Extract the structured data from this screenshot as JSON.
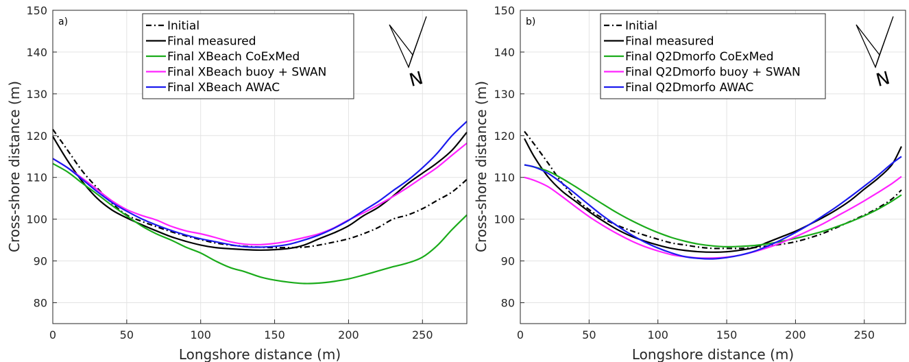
{
  "colors": {
    "initial": "#000000",
    "measured": "#000000",
    "coexmed": "#1aab1a",
    "buoy_swan": "#ff22ff",
    "awac": "#1a1aee",
    "grid": "#e3e3e3",
    "axis": "#262626"
  },
  "north_arrow": {
    "label": "N",
    "icon": "north-arrow-icon"
  },
  "chart_data": [
    {
      "type": "line",
      "panel_label": "a)",
      "xlabel": "Longshore distance (m)",
      "ylabel": "Cross-shore distance (m)",
      "xlim": [
        0,
        280
      ],
      "ylim": [
        75,
        150
      ],
      "xticks": [
        0,
        50,
        100,
        150,
        200,
        250
      ],
      "yticks": [
        80,
        90,
        100,
        110,
        120,
        130,
        140,
        150
      ],
      "grid": true,
      "legend_position": "top-center",
      "series": [
        {
          "name": "Initial",
          "style": "dashdot",
          "color_key": "initial",
          "x": [
            0,
            10,
            20,
            30,
            40,
            50,
            60,
            70,
            80,
            90,
            100,
            110,
            120,
            130,
            140,
            150,
            160,
            170,
            180,
            190,
            200,
            210,
            220,
            230,
            240,
            250,
            260,
            270,
            280
          ],
          "y": [
            121.5,
            116.5,
            111.5,
            107.5,
            103.8,
            101,
            99.5,
            98.2,
            97,
            96,
            95.1,
            94.3,
            93.8,
            93.5,
            93.3,
            93.2,
            93.2,
            93.3,
            93.8,
            94.5,
            95.3,
            96.5,
            98,
            100,
            101,
            102.5,
            104.5,
            106.5,
            109.5
          ]
        },
        {
          "name": "Final measured",
          "style": "solid",
          "color_key": "measured",
          "x": [
            0,
            10,
            20,
            30,
            40,
            50,
            60,
            70,
            80,
            90,
            100,
            110,
            120,
            130,
            140,
            150,
            160,
            170,
            180,
            190,
            200,
            210,
            220,
            230,
            240,
            250,
            260,
            270,
            280
          ],
          "y": [
            119.8,
            114,
            109,
            105,
            102.2,
            100.3,
            98.7,
            97.2,
            95.8,
            94.7,
            93.8,
            93.2,
            92.9,
            92.7,
            92.6,
            92.7,
            93,
            93.8,
            95.3,
            96.7,
            98.4,
            100.8,
            102.8,
            105.5,
            108.5,
            111,
            113.5,
            116.5,
            120.8
          ]
        },
        {
          "name": "Final XBeach CoExMed",
          "style": "solid",
          "color_key": "coexmed",
          "x": [
            0,
            10,
            20,
            30,
            40,
            50,
            60,
            70,
            80,
            90,
            100,
            110,
            120,
            130,
            140,
            150,
            160,
            170,
            180,
            190,
            200,
            210,
            220,
            230,
            240,
            250,
            260,
            270,
            280
          ],
          "y": [
            113.3,
            111.3,
            108.6,
            106,
            103.3,
            100.8,
            98.4,
            96.5,
            95,
            93.3,
            91.9,
            90,
            88.4,
            87.4,
            86.2,
            85.4,
            84.9,
            84.6,
            84.7,
            85.1,
            85.7,
            86.6,
            87.6,
            88.6,
            89.5,
            90.9,
            93.7,
            97.5,
            101
          ]
        },
        {
          "name": "Final XBeach buoy + SWAN",
          "style": "solid",
          "color_key": "buoy_swan",
          "x": [
            0,
            10,
            20,
            30,
            40,
            50,
            60,
            70,
            80,
            90,
            100,
            110,
            120,
            130,
            140,
            150,
            160,
            170,
            180,
            190,
            200,
            210,
            220,
            230,
            240,
            250,
            260,
            270,
            280
          ],
          "y": [
            114.5,
            112.3,
            109.8,
            107.1,
            104.4,
            102.3,
            100.9,
            99.8,
            98.3,
            97.2,
            96.5,
            95.6,
            94.6,
            94,
            93.9,
            94.2,
            94.8,
            95.6,
            96.5,
            97.9,
            99.8,
            101.5,
            103.4,
            105.4,
            107.6,
            110,
            112.4,
            115.3,
            118.2
          ]
        },
        {
          "name": "Final XBeach AWAC",
          "style": "solid",
          "color_key": "awac",
          "x": [
            0,
            10,
            20,
            30,
            40,
            50,
            60,
            70,
            80,
            90,
            100,
            110,
            120,
            130,
            140,
            150,
            160,
            170,
            180,
            190,
            200,
            210,
            220,
            230,
            240,
            250,
            260,
            270,
            280
          ],
          "y": [
            114.5,
            112.3,
            109.5,
            106.6,
            104,
            101.9,
            100.1,
            98.6,
            97.3,
            96.2,
            95.3,
            94.6,
            93.9,
            93.4,
            93.3,
            93.5,
            94,
            95,
            96.2,
            97.8,
            99.7,
            102,
            104.2,
            106.8,
            109.3,
            112.3,
            115.8,
            120,
            123.4
          ]
        }
      ]
    },
    {
      "type": "line",
      "panel_label": "b)",
      "xlabel": "Longshore distance (m)",
      "ylabel": "Cross-shore distance (m)",
      "xlim": [
        0,
        280
      ],
      "ylim": [
        75,
        150
      ],
      "xticks": [
        0,
        50,
        100,
        150,
        200,
        250
      ],
      "yticks": [
        80,
        90,
        100,
        110,
        120,
        130,
        140,
        150
      ],
      "grid": true,
      "legend_position": "top-center",
      "series": [
        {
          "name": "Initial",
          "style": "dashdot",
          "color_key": "initial",
          "x": [
            3,
            10,
            20,
            30,
            40,
            50,
            60,
            70,
            80,
            90,
            100,
            110,
            120,
            130,
            140,
            150,
            160,
            170,
            180,
            190,
            200,
            210,
            220,
            230,
            240,
            250,
            260,
            270,
            277
          ],
          "y": [
            121,
            118,
            113.5,
            108.8,
            105,
            102.3,
            100.2,
            98.6,
            97.3,
            96.2,
            95.2,
            94.3,
            93.8,
            93.3,
            93,
            93,
            93,
            93.2,
            93.6,
            94,
            94.6,
            95.5,
            96.6,
            98,
            99.5,
            101,
            102.7,
            104.8,
            107
          ]
        },
        {
          "name": "Final measured",
          "style": "solid",
          "color_key": "measured",
          "x": [
            3,
            10,
            20,
            30,
            40,
            50,
            60,
            70,
            80,
            90,
            100,
            110,
            120,
            130,
            140,
            150,
            160,
            170,
            180,
            190,
            200,
            210,
            220,
            230,
            240,
            250,
            260,
            270,
            277
          ],
          "y": [
            119.3,
            115,
            110.2,
            106.8,
            104.3,
            101.8,
            99.6,
            97.6,
            96,
            94.8,
            93.8,
            93,
            92.5,
            92.2,
            92.1,
            92.2,
            92.6,
            93.2,
            94.5,
            95.8,
            97.1,
            98.7,
            100.4,
            102.3,
            104.5,
            107.2,
            109.8,
            113,
            117.4
          ]
        },
        {
          "name": "Final Q2Dmorfo CoExMed",
          "style": "solid",
          "color_key": "coexmed",
          "x": [
            3,
            10,
            20,
            30,
            40,
            50,
            60,
            70,
            80,
            90,
            100,
            110,
            120,
            130,
            140,
            150,
            160,
            170,
            180,
            190,
            200,
            210,
            220,
            230,
            240,
            250,
            260,
            270,
            277
          ],
          "y": [
            113,
            112.5,
            111.5,
            109.8,
            107.8,
            105.7,
            103.6,
            101.6,
            99.8,
            98.2,
            96.8,
            95.6,
            94.7,
            94,
            93.6,
            93.4,
            93.5,
            93.7,
            94.1,
            94.7,
            95.4,
            96.2,
            97.1,
            98.2,
            99.4,
            100.8,
            102.4,
            104.3,
            105.8
          ]
        },
        {
          "name": "Final Q2Dmorfo buoy + SWAN",
          "style": "solid",
          "color_key": "buoy_swan",
          "x": [
            3,
            10,
            20,
            30,
            40,
            50,
            60,
            70,
            80,
            90,
            100,
            110,
            120,
            130,
            140,
            150,
            160,
            170,
            180,
            190,
            200,
            210,
            220,
            230,
            240,
            250,
            260,
            270,
            277
          ],
          "y": [
            110,
            109.3,
            107.8,
            105.5,
            103,
            100.6,
            98.5,
            96.6,
            94.9,
            93.5,
            92.4,
            91.5,
            91,
            90.7,
            90.7,
            90.9,
            91.4,
            92.2,
            93.2,
            94.4,
            95.8,
            97.3,
            98.9,
            100.7,
            102.5,
            104.4,
            106.4,
            108.5,
            110.2
          ]
        },
        {
          "name": "Final Q2Dmorfo AWAC",
          "style": "solid",
          "color_key": "awac",
          "x": [
            3,
            10,
            20,
            30,
            40,
            50,
            60,
            70,
            80,
            90,
            100,
            110,
            120,
            130,
            140,
            150,
            160,
            170,
            180,
            190,
            200,
            210,
            220,
            230,
            240,
            250,
            260,
            270,
            277
          ],
          "y": [
            113,
            112.5,
            111,
            108.7,
            106.1,
            103.4,
            100.8,
            98.5,
            96.4,
            94.6,
            93.1,
            91.9,
            91,
            90.6,
            90.5,
            90.8,
            91.4,
            92.3,
            93.6,
            95.1,
            96.8,
            98.7,
            100.8,
            103,
            105.4,
            107.9,
            110.5,
            113.3,
            115
          ]
        }
      ]
    }
  ]
}
